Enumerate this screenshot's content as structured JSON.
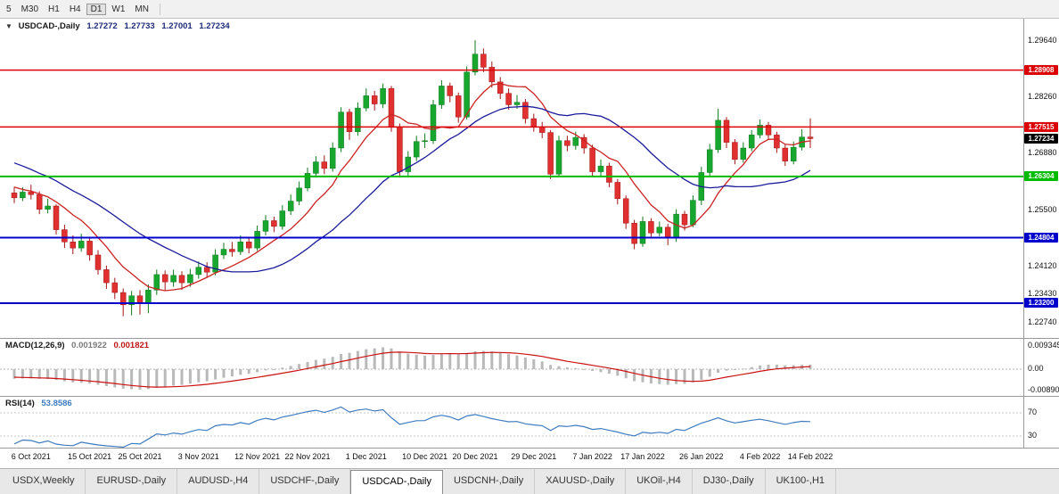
{
  "toolbar": {
    "timeframes": [
      "5",
      "M30",
      "H1",
      "H4",
      "D1",
      "W1",
      "MN"
    ],
    "active": "D1"
  },
  "main": {
    "title": {
      "collapse_icon": "▼",
      "symbol": "USDCAD-,Daily",
      "open": "1.27272",
      "high": "1.27733",
      "low": "1.27001",
      "close": "1.27234"
    },
    "axis_labels": [
      "1.29640",
      "1.28260",
      "1.26880",
      "1.25500",
      "1.24120",
      "1.23430",
      "1.22740"
    ],
    "levels": [
      {
        "label": "1.28908",
        "value": 1.28908,
        "color": "#dd0000",
        "width": 1.5
      },
      {
        "label": "1.27515",
        "value": 1.27515,
        "color": "#dd0000",
        "width": 1.5
      },
      {
        "label": "1.26304",
        "value": 1.26304,
        "color": "#00bb00",
        "width": 2
      },
      {
        "label": "1.24804",
        "value": 1.24804,
        "color": "#0000cc",
        "width": 2
      },
      {
        "label": "1.23200",
        "value": 1.232,
        "color": "#0000cc",
        "width": 2
      }
    ],
    "bid": {
      "label": "1.27234",
      "value": 1.27234,
      "color": "#000000"
    }
  },
  "macd": {
    "label": "MACD(12,26,9)",
    "value_main": "0.001922",
    "value_signal": "0.001821",
    "axis": {
      "top": "0.009345",
      "zero": "0.00",
      "bottom": "-0.008903"
    }
  },
  "rsi": {
    "label": "RSI(14)",
    "value": "53.8586",
    "axis": {
      "upper": "70",
      "lower": "30"
    },
    "levels": [
      70,
      30
    ]
  },
  "dates": {
    "labels": [
      "6 Oct 2021",
      "15 Oct 2021",
      "25 Oct 2021",
      "3 Nov 2021",
      "12 Nov 2021",
      "22 Nov 2021",
      "1 Dec 2021",
      "10 Dec 2021",
      "20 Dec 2021",
      "29 Dec 2021",
      "7 Jan 2022",
      "17 Jan 2022",
      "26 Jan 2022",
      "4 Feb 2022",
      "14 Feb 2022"
    ],
    "indices": [
      2,
      9,
      15,
      22,
      29,
      35,
      42,
      49,
      55,
      62,
      69,
      75,
      82,
      89,
      95
    ]
  },
  "tabs": {
    "active_index": 4,
    "items": [
      {
        "label": "USDX,Weekly"
      },
      {
        "label": "EURUSD-,Daily"
      },
      {
        "label": "AUDUSD-,H4"
      },
      {
        "label": "USDCHF-,Daily"
      },
      {
        "label": "USDCAD-,Daily"
      },
      {
        "label": "USDCNH-,Daily"
      },
      {
        "label": "XAUUSD-,Daily"
      },
      {
        "label": "UKOil-,H4"
      },
      {
        "label": "DJ30-,Daily"
      },
      {
        "label": "UK100-,H1"
      }
    ]
  },
  "chart_data": {
    "type": "candlestick",
    "title": "USDCAD-,Daily",
    "colors": {
      "up": "#17a62e",
      "up_stroke": "#0e7a1e",
      "down": "#e03030",
      "down_stroke": "#a01515",
      "ma_fast": "#cc2222",
      "ma_slow": "#1c1c9c",
      "macd_hist": "#b9b9b9",
      "macd_signal": "#cc1111",
      "rsi": "#3f7cbf"
    },
    "overlays": {
      "ma_fast": {
        "type": "sma",
        "period": 8
      },
      "ma_slow": {
        "type": "sma",
        "period": 21
      }
    },
    "indicators": {
      "macd": {
        "fast": 12,
        "slow": 26,
        "signal": 9
      },
      "rsi": {
        "period": 14
      }
    },
    "price_range": {
      "top": 1.2984,
      "bottom": 1.225
    },
    "prehistory_closes": [
      1.2756,
      1.275,
      1.2762,
      1.2744,
      1.2732,
      1.272,
      1.2724,
      1.2708,
      1.2692,
      1.2676,
      1.2656,
      1.266,
      1.2644,
      1.2628,
      1.264,
      1.2618,
      1.2606,
      1.2614,
      1.26,
      1.2588,
      1.2592
    ],
    "candles": [
      [
        1.259,
        1.2605,
        1.2565,
        1.2578
      ],
      [
        1.2578,
        1.2604,
        1.257,
        1.2592
      ],
      [
        1.2592,
        1.261,
        1.2574,
        1.2586
      ],
      [
        1.2586,
        1.2594,
        1.2538,
        1.255
      ],
      [
        1.255,
        1.2576,
        1.254,
        1.2558
      ],
      [
        1.2558,
        1.2562,
        1.2488,
        1.25
      ],
      [
        1.25,
        1.2512,
        1.2455,
        1.247
      ],
      [
        1.247,
        1.2486,
        1.244,
        1.2455
      ],
      [
        1.2455,
        1.249,
        1.2446,
        1.2472
      ],
      [
        1.2472,
        1.248,
        1.2424,
        1.2438
      ],
      [
        1.2438,
        1.245,
        1.239,
        1.2402
      ],
      [
        1.2402,
        1.2412,
        1.2355,
        1.237
      ],
      [
        1.237,
        1.2382,
        1.233,
        1.2346
      ],
      [
        1.2346,
        1.2356,
        1.2288,
        1.2316
      ],
      [
        1.2316,
        1.235,
        1.229,
        1.2338
      ],
      [
        1.2338,
        1.2352,
        1.2292,
        1.232
      ],
      [
        1.232,
        1.2366,
        1.2296,
        1.2352
      ],
      [
        1.2352,
        1.2402,
        1.234,
        1.239
      ],
      [
        1.239,
        1.24,
        1.2352,
        1.2372
      ],
      [
        1.2372,
        1.2402,
        1.236,
        1.2388
      ],
      [
        1.2388,
        1.2398,
        1.2352,
        1.237
      ],
      [
        1.237,
        1.2404,
        1.236,
        1.239
      ],
      [
        1.239,
        1.2422,
        1.238,
        1.2408
      ],
      [
        1.2408,
        1.242,
        1.2382,
        1.2396
      ],
      [
        1.2396,
        1.2452,
        1.2388,
        1.2438
      ],
      [
        1.2438,
        1.2468,
        1.2428,
        1.2452
      ],
      [
        1.2452,
        1.247,
        1.2434,
        1.2446
      ],
      [
        1.2446,
        1.2486,
        1.2438,
        1.247
      ],
      [
        1.247,
        1.2482,
        1.2442,
        1.2455
      ],
      [
        1.2455,
        1.251,
        1.2448,
        1.2496
      ],
      [
        1.2496,
        1.2536,
        1.2486,
        1.2522
      ],
      [
        1.2522,
        1.2532,
        1.2494,
        1.2508
      ],
      [
        1.2508,
        1.256,
        1.25,
        1.2546
      ],
      [
        1.2546,
        1.2586,
        1.2536,
        1.257
      ],
      [
        1.257,
        1.2618,
        1.256,
        1.2602
      ],
      [
        1.2602,
        1.2652,
        1.2594,
        1.2638
      ],
      [
        1.2638,
        1.268,
        1.2628,
        1.2666
      ],
      [
        1.2666,
        1.2682,
        1.2636,
        1.265
      ],
      [
        1.265,
        1.2714,
        1.2642,
        1.27
      ],
      [
        1.27,
        1.28,
        1.269,
        1.2788
      ],
      [
        1.2788,
        1.2796,
        1.272,
        1.274
      ],
      [
        1.274,
        1.2812,
        1.273,
        1.2798
      ],
      [
        1.2798,
        1.2846,
        1.279,
        1.2828
      ],
      [
        1.2828,
        1.284,
        1.2792,
        1.2808
      ],
      [
        1.2808,
        1.2858,
        1.2798,
        1.2846
      ],
      [
        1.2846,
        1.2852,
        1.274,
        1.2752
      ],
      [
        1.2752,
        1.276,
        1.2628,
        1.2642
      ],
      [
        1.2642,
        1.2692,
        1.263,
        1.2678
      ],
      [
        1.2678,
        1.273,
        1.2668,
        1.2716
      ],
      [
        1.2716,
        1.2736,
        1.27,
        1.2718
      ],
      [
        1.2718,
        1.2818,
        1.271,
        1.2806
      ],
      [
        1.2806,
        1.2866,
        1.2796,
        1.2852
      ],
      [
        1.2852,
        1.286,
        1.2812,
        1.2828
      ],
      [
        1.2828,
        1.2836,
        1.2762,
        1.2776
      ],
      [
        1.2776,
        1.29,
        1.277,
        1.2886
      ],
      [
        1.2886,
        1.2964,
        1.2878,
        1.293
      ],
      [
        1.293,
        1.2944,
        1.2886,
        1.2898
      ],
      [
        1.2898,
        1.2912,
        1.2848,
        1.2862
      ],
      [
        1.2862,
        1.2874,
        1.282,
        1.2834
      ],
      [
        1.2834,
        1.2846,
        1.2794,
        1.2806
      ],
      [
        1.2806,
        1.283,
        1.2796,
        1.2812
      ],
      [
        1.2812,
        1.282,
        1.276,
        1.2772
      ],
      [
        1.2772,
        1.2784,
        1.274,
        1.2752
      ],
      [
        1.2752,
        1.2764,
        1.2724,
        1.2738
      ],
      [
        1.2738,
        1.2744,
        1.2624,
        1.2636
      ],
      [
        1.2636,
        1.273,
        1.263,
        1.2718
      ],
      [
        1.2718,
        1.273,
        1.2692,
        1.2706
      ],
      [
        1.2706,
        1.274,
        1.2696,
        1.2726
      ],
      [
        1.2726,
        1.2734,
        1.2686,
        1.27
      ],
      [
        1.27,
        1.2708,
        1.263,
        1.2642
      ],
      [
        1.2642,
        1.2672,
        1.2632,
        1.2656
      ],
      [
        1.2656,
        1.2664,
        1.2604,
        1.2616
      ],
      [
        1.2616,
        1.2624,
        1.2562,
        1.2576
      ],
      [
        1.2576,
        1.2584,
        1.2502,
        1.2516
      ],
      [
        1.2516,
        1.2524,
        1.2452,
        1.2466
      ],
      [
        1.2466,
        1.2532,
        1.2458,
        1.252
      ],
      [
        1.252,
        1.2528,
        1.2478,
        1.2492
      ],
      [
        1.2492,
        1.252,
        1.2484,
        1.2506
      ],
      [
        1.2506,
        1.2514,
        1.2462,
        1.248
      ],
      [
        1.248,
        1.255,
        1.247,
        1.2538
      ],
      [
        1.2538,
        1.2546,
        1.2498,
        1.2512
      ],
      [
        1.2512,
        1.2584,
        1.2506,
        1.2572
      ],
      [
        1.2572,
        1.2654,
        1.256,
        1.264
      ],
      [
        1.264,
        1.271,
        1.2632,
        1.2696
      ],
      [
        1.2696,
        1.2796,
        1.2688,
        1.2768
      ],
      [
        1.2768,
        1.2776,
        1.27,
        1.2714
      ],
      [
        1.2714,
        1.2722,
        1.266,
        1.2672
      ],
      [
        1.2672,
        1.2714,
        1.2664,
        1.27
      ],
      [
        1.27,
        1.2744,
        1.2692,
        1.2732
      ],
      [
        1.2732,
        1.277,
        1.2724,
        1.2756
      ],
      [
        1.2756,
        1.2764,
        1.272,
        1.2732
      ],
      [
        1.2732,
        1.274,
        1.2688,
        1.27
      ],
      [
        1.27,
        1.2708,
        1.2656,
        1.2668
      ],
      [
        1.2668,
        1.2716,
        1.266,
        1.2702
      ],
      [
        1.2702,
        1.2746,
        1.2694,
        1.2727
      ],
      [
        1.2727,
        1.2773,
        1.27,
        1.2723
      ]
    ]
  }
}
